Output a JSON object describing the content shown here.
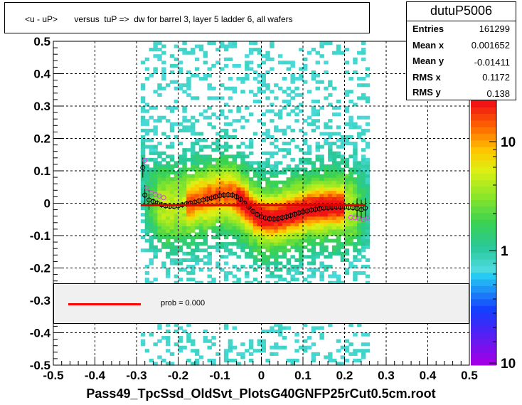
{
  "title": "<u - uP>       versus  tuP =>  dw for barrel 3, layer 5 ladder 6, all wafers",
  "stats": {
    "name": "dutuP5006",
    "rows": [
      {
        "label": "Entries",
        "value": "161299"
      },
      {
        "label": "Mean x",
        "value": "0.001652"
      },
      {
        "label": "Mean y",
        "value": "-0.01411"
      },
      {
        "label": "RMS x",
        "value": "0.1172"
      },
      {
        "label": "RMS y",
        "value": "0.138"
      }
    ]
  },
  "legend": {
    "text": "prob = 0.000",
    "line_color": "#ff0000"
  },
  "xlabel": "Pass49_TpcSsd_OldSvt_PlotsG40GNFP25rCut0.5cm.root",
  "chart_data": {
    "type": "heatmap",
    "xlim": [
      -0.5,
      0.5
    ],
    "ylim": [
      -0.5,
      0.5
    ],
    "x_ticks": [
      "-0.5",
      "-0.4",
      "-0.3",
      "-0.2",
      "-0.1",
      "0",
      "0.1",
      "0.2",
      "0.3",
      "0.4",
      "0.5"
    ],
    "y_ticks": [
      "-0.5",
      "-0.4",
      "-0.3",
      "-0.2",
      "-0.1",
      "0",
      "0.1",
      "0.2",
      "0.3",
      "0.4",
      "0.5"
    ],
    "grid": true,
    "colorbar": {
      "scale": "log",
      "tick_labels": [
        "1",
        "10",
        "10"
      ]
    },
    "profile_points": [
      {
        "x": -0.285,
        "y": 0.11
      },
      {
        "x": -0.28,
        "y": 0.025
      },
      {
        "x": -0.27,
        "y": 0.01
      },
      {
        "x": -0.26,
        "y": 0.005
      },
      {
        "x": -0.25,
        "y": 0.0
      },
      {
        "x": -0.24,
        "y": -0.005
      },
      {
        "x": -0.23,
        "y": -0.008
      },
      {
        "x": -0.22,
        "y": -0.01
      },
      {
        "x": -0.21,
        "y": -0.01
      },
      {
        "x": -0.2,
        "y": -0.008
      },
      {
        "x": -0.19,
        "y": -0.005
      },
      {
        "x": -0.18,
        "y": -0.002
      },
      {
        "x": -0.17,
        "y": 0.0
      },
      {
        "x": -0.16,
        "y": 0.003
      },
      {
        "x": -0.15,
        "y": 0.007
      },
      {
        "x": -0.14,
        "y": 0.01
      },
      {
        "x": -0.13,
        "y": 0.013
      },
      {
        "x": -0.12,
        "y": 0.016
      },
      {
        "x": -0.11,
        "y": 0.02
      },
      {
        "x": -0.1,
        "y": 0.023
      },
      {
        "x": -0.09,
        "y": 0.025
      },
      {
        "x": -0.08,
        "y": 0.026
      },
      {
        "x": -0.07,
        "y": 0.025
      },
      {
        "x": -0.06,
        "y": 0.02
      },
      {
        "x": -0.05,
        "y": 0.012
      },
      {
        "x": -0.04,
        "y": 0.0
      },
      {
        "x": -0.03,
        "y": -0.012
      },
      {
        "x": -0.02,
        "y": -0.025
      },
      {
        "x": -0.01,
        "y": -0.035
      },
      {
        "x": 0.0,
        "y": -0.042
      },
      {
        "x": 0.01,
        "y": -0.046
      },
      {
        "x": 0.02,
        "y": -0.048
      },
      {
        "x": 0.03,
        "y": -0.049
      },
      {
        "x": 0.04,
        "y": -0.048
      },
      {
        "x": 0.05,
        "y": -0.045
      },
      {
        "x": 0.06,
        "y": -0.042
      },
      {
        "x": 0.07,
        "y": -0.038
      },
      {
        "x": 0.08,
        "y": -0.034
      },
      {
        "x": 0.09,
        "y": -0.03
      },
      {
        "x": 0.1,
        "y": -0.027
      },
      {
        "x": 0.11,
        "y": -0.024
      },
      {
        "x": 0.12,
        "y": -0.021
      },
      {
        "x": 0.13,
        "y": -0.019
      },
      {
        "x": 0.14,
        "y": -0.017
      },
      {
        "x": 0.15,
        "y": -0.015
      },
      {
        "x": 0.16,
        "y": -0.014
      },
      {
        "x": 0.17,
        "y": -0.013
      },
      {
        "x": 0.18,
        "y": -0.012
      },
      {
        "x": 0.19,
        "y": -0.012
      },
      {
        "x": 0.2,
        "y": -0.012
      },
      {
        "x": 0.21,
        "y": -0.013
      },
      {
        "x": 0.22,
        "y": -0.014
      },
      {
        "x": 0.23,
        "y": -0.016
      },
      {
        "x": 0.24,
        "y": -0.02
      },
      {
        "x": 0.25,
        "y": -0.015
      }
    ],
    "fit_line": {
      "x": [
        -0.29,
        0.25
      ],
      "y": [
        -0.006,
        -0.006
      ]
    }
  }
}
